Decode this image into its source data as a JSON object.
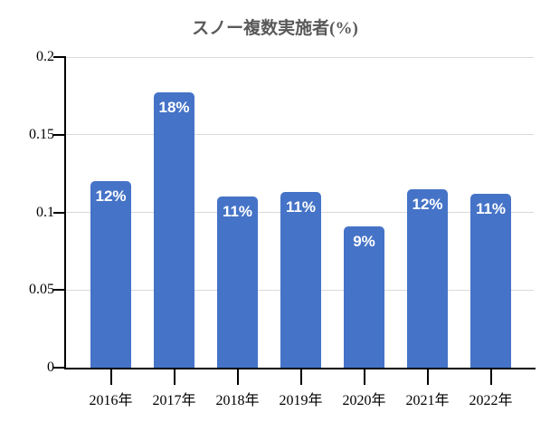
{
  "title": "スノー複数実施者(%)",
  "colors": {
    "bar": "#4573C7",
    "bar_label": "#ffffff",
    "gridline": "#d9d9d9",
    "axis": "#000000",
    "title_text": "#595959"
  },
  "chart_data": {
    "type": "bar",
    "title": "スノー複数実施者(%)",
    "categories": [
      "2016年",
      "2017年",
      "2018年",
      "2019年",
      "2020年",
      "2021年",
      "2022年"
    ],
    "values": [
      0.12,
      0.177,
      0.11,
      0.113,
      0.091,
      0.115,
      0.112
    ],
    "bar_labels": [
      "12%",
      "18%",
      "11%",
      "11%",
      "9%",
      "12%",
      "11%"
    ],
    "xlabel": "",
    "ylabel": "",
    "ylim": [
      0,
      0.2
    ],
    "yticks": [
      0,
      0.05,
      0.1,
      0.15,
      0.2
    ],
    "ytick_labels": [
      "0",
      "0.05",
      "0.1",
      "0.15",
      "0.2"
    ],
    "grid": "horizontal-light",
    "legend": "none",
    "bar_label_position": "inside-top"
  }
}
